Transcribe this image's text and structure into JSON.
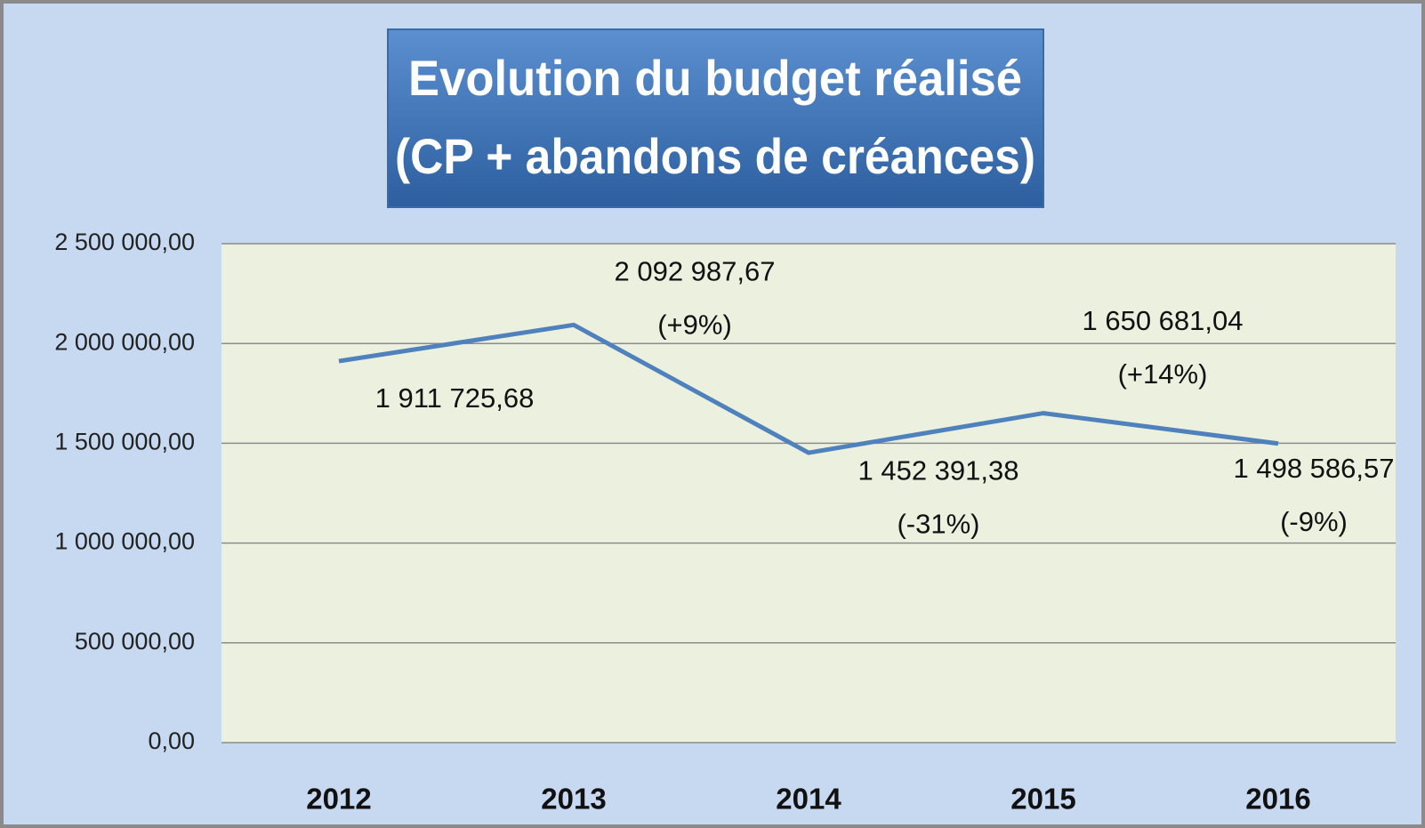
{
  "chart_data": {
    "type": "line",
    "title": "Evolution du budget réalisé",
    "subtitle": "(CP + abandons de créances)",
    "categories": [
      "2012",
      "2013",
      "2014",
      "2015",
      "2016"
    ],
    "values": [
      1911725.68,
      2092987.67,
      1452391.38,
      1650681.04,
      1498586.57
    ],
    "value_labels": [
      "1 911 725,68",
      "2 092 987,67",
      "1 452 391,38",
      "1 650 681,04",
      "1 498 586,57"
    ],
    "change_labels": [
      null,
      "(+9%)",
      "(-31%)",
      "(+14%)",
      "(-9%)"
    ],
    "color": "#4f81bd",
    "ylim": [
      0,
      2500000
    ],
    "yticks": [
      {
        "value": 0,
        "label": "0,00"
      },
      {
        "value": 500000,
        "label": "500 000,00"
      },
      {
        "value": 1000000,
        "label": "1 000 000,00"
      },
      {
        "value": 1500000,
        "label": "1 500 000,00"
      },
      {
        "value": 2000000,
        "label": "2 000 000,00"
      },
      {
        "value": 2500000,
        "label": "2 500 000,00"
      }
    ],
    "grid": true
  }
}
